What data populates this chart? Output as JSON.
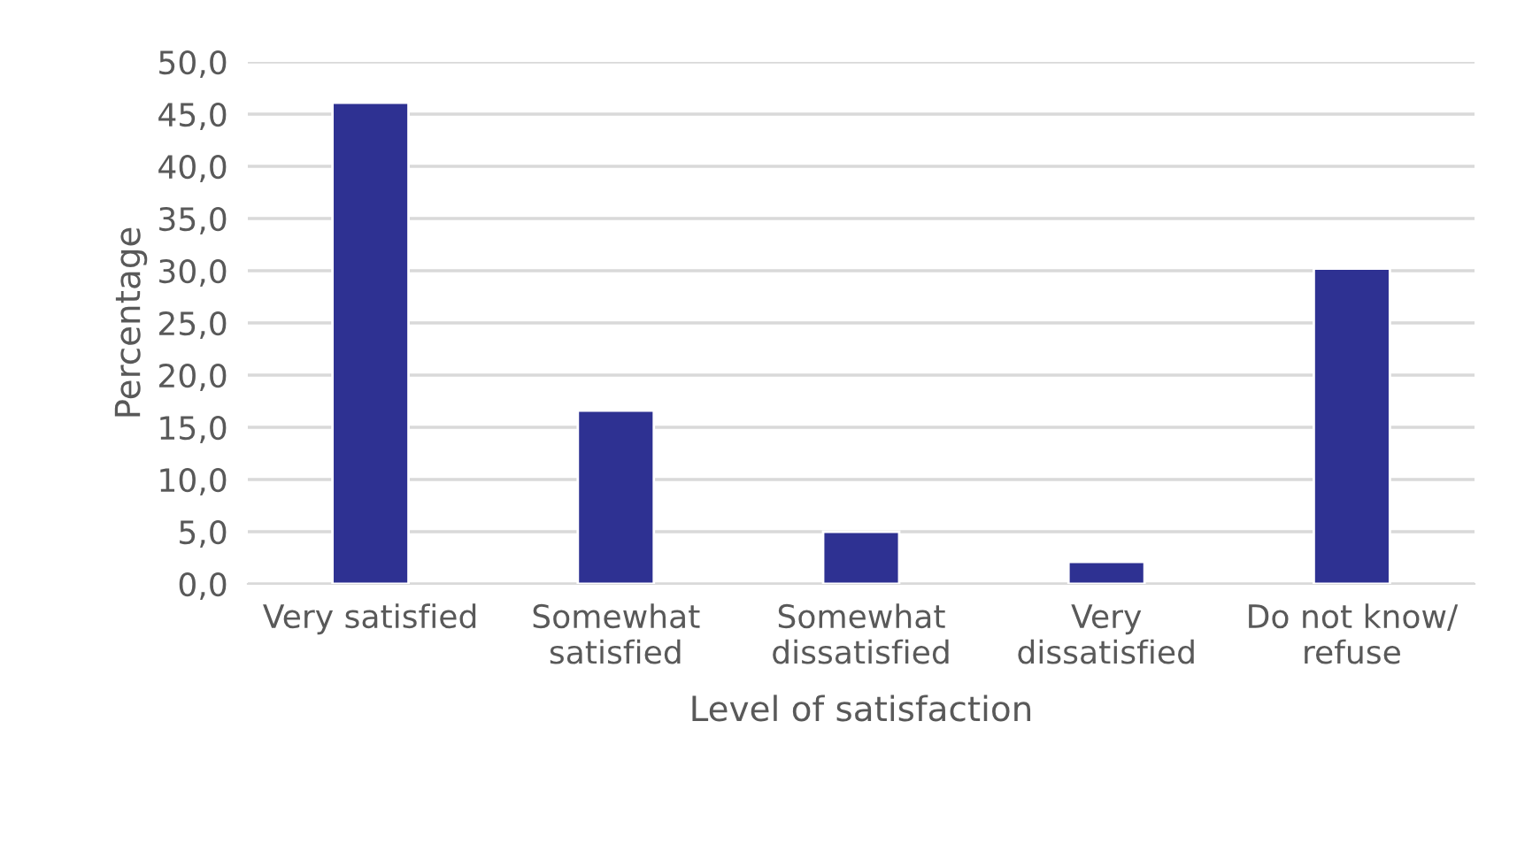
{
  "chart_data": {
    "type": "bar",
    "xlabel": "Level of satisfaction",
    "ylabel": "Percentage",
    "categories": [
      "Very satisfied",
      "Somewhat\nsatisfied",
      "Somewhat\ndissatisfied",
      "Very\ndissatisfied",
      "Do not know/\nrefuse"
    ],
    "values": [
      46.1,
      16.6,
      5.0,
      2.1,
      30.2
    ],
    "color": "#2e3192",
    "ylim": [
      0,
      50
    ],
    "yticks": [
      {
        "value": 0,
        "label": "0,0"
      },
      {
        "value": 5,
        "label": "5,0"
      },
      {
        "value": 10,
        "label": "10,0"
      },
      {
        "value": 15,
        "label": "15,0"
      },
      {
        "value": 20,
        "label": "20,0"
      },
      {
        "value": 25,
        "label": "25,0"
      },
      {
        "value": 30,
        "label": "30,0"
      },
      {
        "value": 35,
        "label": "35,0"
      },
      {
        "value": 40,
        "label": "40,0"
      },
      {
        "value": 45,
        "label": "45,0"
      },
      {
        "value": 50,
        "label": "50,0"
      }
    ],
    "grid": "y",
    "legend": false
  }
}
